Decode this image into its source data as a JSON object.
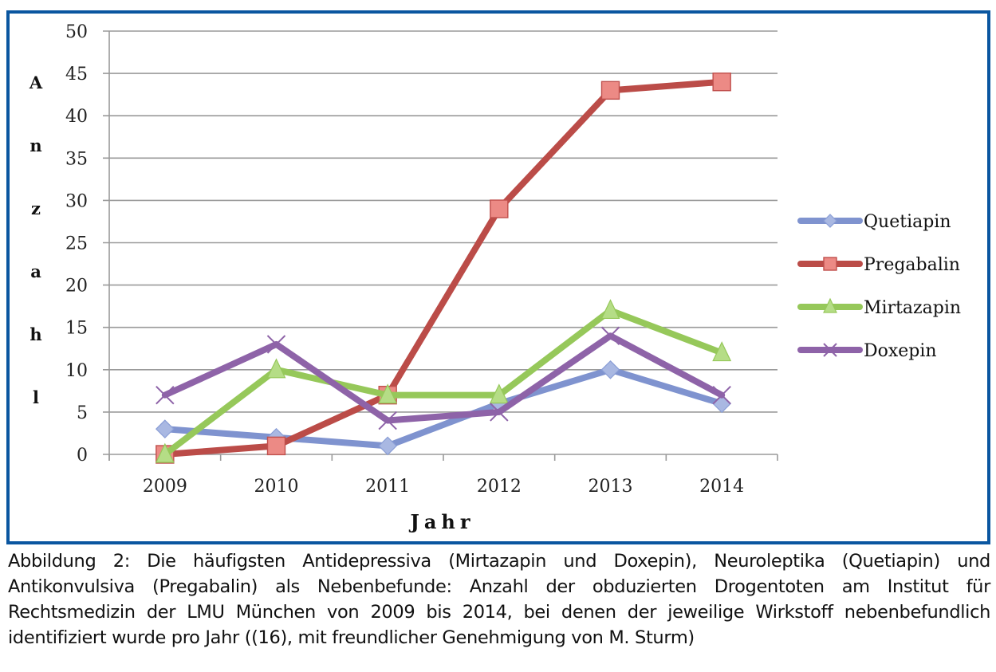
{
  "chart_data": {
    "type": "line",
    "title": "",
    "xlabel": "Jahr",
    "ylabel": "Anzahl",
    "categories": [
      "2009",
      "2010",
      "2011",
      "2012",
      "2013",
      "2014"
    ],
    "ylim": [
      0,
      50
    ],
    "yticks": [
      0,
      5,
      10,
      15,
      20,
      25,
      30,
      35,
      40,
      45,
      50
    ],
    "grid": true,
    "legend_position": "right",
    "series": [
      {
        "name": "Quetiapin",
        "color": "#7f93cf",
        "marker": "diamond",
        "values": [
          3,
          2,
          1,
          6,
          10,
          6
        ]
      },
      {
        "name": "Pregabalin",
        "color": "#bb4c48",
        "marker": "square",
        "values": [
          0,
          1,
          7,
          29,
          43,
          44
        ]
      },
      {
        "name": "Mirtazapin",
        "color": "#96c85a",
        "marker": "triangle",
        "values": [
          0,
          10,
          7,
          7,
          17,
          12
        ]
      },
      {
        "name": "Doxepin",
        "color": "#8e63a8",
        "marker": "x",
        "values": [
          7,
          13,
          4,
          5,
          14,
          7
        ]
      }
    ]
  },
  "frame_color": "#0a56a0",
  "caption": "Abbildung 2: Die häufigsten Antidepressiva (Mirtazapin und Doxepin), Neuroleptika (Quetiapin) und Antikonvulsiva (Pregabalin) als Nebenbefunde: Anzahl der obduzierten Drogentoten am Institut für Rechtsmedizin der LMU München von 2009 bis 2014, bei denen der jeweilige Wirkstoff neben­befundlich identifiziert wurde pro Jahr ((16), mit freundlicher Genehmigung von M. Sturm)"
}
